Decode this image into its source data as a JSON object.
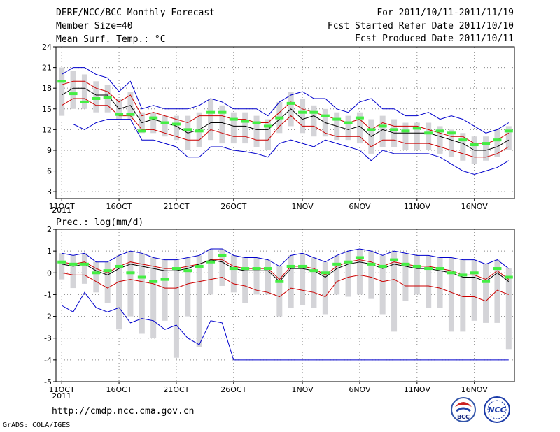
{
  "header": {
    "title": "DERF/NCC/BCC Monthly Forecast",
    "member_size": "Member Size=40",
    "period": "For 2011/10/11-2011/11/19",
    "fcst_started": "Fcst Started Refer Date 2011/10/10",
    "fcst_produced": "Fcst Produced Date 2011/10/11"
  },
  "footer": {
    "url": "http://cmdp.ncc.cma.gov.cn",
    "grads_credit": "GrADS: COLA/IGES",
    "logo_bcc": "BCC",
    "logo_ncc": "NCC"
  },
  "colors": {
    "envelope": "#0000cc",
    "spread": "#cc0000",
    "mean": "#000000",
    "member_bar": "#d4d4d8",
    "observed": "#44ee44"
  },
  "chart_data": [
    {
      "type": "line",
      "title": "Mean Surf. Temp.: °C",
      "x": [
        11,
        12,
        13,
        14,
        15,
        16,
        17,
        18,
        19,
        20,
        21,
        22,
        23,
        24,
        25,
        26,
        27,
        28,
        29,
        30,
        31,
        32,
        33,
        34,
        35,
        36,
        37,
        38,
        39,
        40,
        41,
        42,
        43,
        44,
        45,
        46,
        47,
        48,
        49,
        50
      ],
      "x_ticks": [
        {
          "x": 11,
          "label": "11OCT"
        },
        {
          "x": 16,
          "label": "16OCT"
        },
        {
          "x": 21,
          "label": "21OCT"
        },
        {
          "x": 26,
          "label": "26OCT"
        },
        {
          "x": 32,
          "label": "1NOV"
        },
        {
          "x": 37,
          "label": "6NOV"
        },
        {
          "x": 42,
          "label": "11NOV"
        },
        {
          "x": 47,
          "label": "16NOV"
        }
      ],
      "x_year": "2011",
      "xlim": [
        10.5,
        50.5
      ],
      "ylim": [
        2,
        24
      ],
      "y_ticks": [
        3,
        6,
        9,
        12,
        15,
        18,
        21,
        24
      ],
      "series": [
        {
          "name": "max",
          "role": "envelope",
          "values": [
            20.0,
            21.0,
            21.0,
            20.0,
            19.5,
            17.5,
            19.0,
            15.0,
            15.5,
            15.0,
            15.0,
            15.0,
            15.5,
            16.5,
            16.0,
            15.0,
            15.0,
            15.0,
            14.0,
            16.0,
            17.0,
            17.5,
            16.5,
            16.5,
            15.0,
            14.5,
            16.0,
            16.5,
            15.0,
            15.0,
            14.0,
            14.0,
            14.5,
            13.5,
            14.0,
            13.5,
            12.5,
            11.5,
            12.0,
            13.0
          ]
        },
        {
          "name": "upper",
          "role": "spread",
          "values": [
            18.5,
            19.0,
            19.0,
            18.0,
            17.5,
            16.0,
            17.0,
            14.0,
            14.5,
            14.0,
            13.5,
            13.0,
            14.0,
            14.0,
            14.0,
            13.5,
            13.5,
            13.0,
            13.0,
            14.5,
            16.0,
            15.0,
            14.5,
            14.0,
            13.5,
            13.0,
            13.5,
            12.0,
            13.0,
            12.5,
            12.5,
            12.5,
            12.0,
            11.5,
            11.0,
            11.0,
            10.0,
            10.0,
            10.5,
            11.5
          ]
        },
        {
          "name": "mean",
          "role": "mean",
          "values": [
            17.0,
            18.0,
            18.0,
            17.0,
            17.0,
            15.0,
            15.5,
            13.0,
            13.5,
            13.0,
            12.5,
            11.5,
            12.0,
            13.0,
            13.0,
            12.5,
            12.5,
            12.0,
            12.0,
            13.5,
            15.0,
            13.5,
            14.0,
            13.0,
            12.5,
            12.0,
            12.5,
            11.0,
            12.0,
            11.5,
            11.5,
            11.5,
            11.5,
            11.0,
            10.5,
            10.0,
            9.0,
            9.0,
            9.5,
            10.5
          ]
        },
        {
          "name": "lower",
          "role": "spread",
          "values": [
            15.5,
            16.5,
            16.5,
            15.5,
            15.5,
            14.0,
            14.0,
            12.0,
            12.0,
            11.5,
            11.0,
            10.5,
            10.5,
            12.0,
            11.5,
            11.0,
            11.0,
            10.5,
            10.5,
            12.5,
            14.0,
            12.5,
            12.5,
            11.5,
            11.0,
            11.0,
            11.0,
            9.5,
            10.5,
            10.5,
            10.0,
            10.0,
            10.0,
            9.5,
            9.0,
            8.5,
            8.0,
            8.0,
            8.5,
            9.5
          ]
        },
        {
          "name": "min",
          "role": "envelope",
          "values": [
            12.8,
            12.8,
            12.0,
            13.0,
            13.5,
            13.5,
            13.5,
            10.5,
            10.5,
            10.0,
            9.5,
            8.0,
            8.0,
            9.5,
            9.5,
            9.0,
            8.8,
            8.5,
            8.0,
            10.0,
            10.5,
            10.0,
            9.5,
            10.5,
            10.0,
            9.5,
            9.0,
            7.5,
            9.0,
            8.5,
            8.5,
            8.5,
            8.5,
            8.0,
            7.0,
            6.0,
            5.5,
            6.0,
            6.5,
            7.5
          ]
        }
      ],
      "member_range": {
        "low": [
          14.0,
          15.0,
          15.0,
          14.5,
          14.5,
          13.5,
          13.5,
          11.5,
          11.5,
          11.0,
          10.5,
          9.0,
          9.5,
          10.5,
          10.0,
          10.0,
          10.0,
          9.5,
          9.0,
          11.5,
          12.5,
          11.5,
          11.0,
          11.0,
          10.5,
          10.5,
          10.0,
          8.5,
          9.5,
          9.5,
          9.0,
          9.0,
          9.0,
          8.5,
          8.0,
          7.5,
          7.0,
          7.5,
          8.0,
          9.0
        ],
        "high": [
          21.0,
          20.5,
          20.0,
          19.0,
          18.5,
          16.5,
          17.5,
          14.5,
          14.5,
          14.0,
          14.0,
          14.0,
          14.5,
          16.5,
          15.5,
          14.5,
          14.5,
          14.0,
          13.5,
          16.0,
          17.5,
          16.5,
          15.5,
          15.0,
          14.5,
          14.0,
          14.5,
          13.5,
          14.0,
          13.5,
          13.0,
          13.0,
          13.0,
          12.5,
          12.0,
          11.5,
          11.0,
          11.0,
          12.0,
          12.5
        ]
      },
      "observed": [
        19.0,
        17.2,
        16.0,
        16.5,
        16.7,
        14.2,
        14.2,
        11.8,
        13.7,
        13.0,
        12.8,
        12.0,
        11.8,
        14.5,
        14.5,
        13.5,
        13.2,
        13.0,
        12.5,
        13.7,
        15.8,
        14.5,
        14.5,
        14.0,
        13.5,
        13.0,
        13.7,
        12.0,
        12.5,
        12.0,
        11.8,
        12.2,
        11.5,
        11.8,
        11.5,
        10.5,
        9.8,
        10.0,
        10.5,
        11.8
      ]
    },
    {
      "type": "line",
      "title": "Prec.: log(mm/d)",
      "x": [
        11,
        12,
        13,
        14,
        15,
        16,
        17,
        18,
        19,
        20,
        21,
        22,
        23,
        24,
        25,
        26,
        27,
        28,
        29,
        30,
        31,
        32,
        33,
        34,
        35,
        36,
        37,
        38,
        39,
        40,
        41,
        42,
        43,
        44,
        45,
        46,
        47,
        48,
        49,
        50
      ],
      "x_ticks": [
        {
          "x": 11,
          "label": "11OCT"
        },
        {
          "x": 16,
          "label": "16OCT"
        },
        {
          "x": 21,
          "label": "21OCT"
        },
        {
          "x": 26,
          "label": "26OCT"
        },
        {
          "x": 32,
          "label": "1NOV"
        },
        {
          "x": 37,
          "label": "6NOV"
        },
        {
          "x": 42,
          "label": "11NOV"
        },
        {
          "x": 47,
          "label": "16NOV"
        }
      ],
      "x_year": "2011",
      "xlim": [
        10.5,
        50.5
      ],
      "ylim": [
        -5,
        2
      ],
      "y_ticks": [
        -5,
        -4,
        -3,
        -2,
        -1,
        0,
        1,
        2
      ],
      "series": [
        {
          "name": "max",
          "role": "envelope",
          "values": [
            0.9,
            0.8,
            0.9,
            0.5,
            0.5,
            0.8,
            1.0,
            0.9,
            0.7,
            0.6,
            0.6,
            0.7,
            0.8,
            1.1,
            1.1,
            0.8,
            0.7,
            0.7,
            0.6,
            0.3,
            0.8,
            0.9,
            0.7,
            0.5,
            0.8,
            1.0,
            1.1,
            1.0,
            0.8,
            1.0,
            0.9,
            0.8,
            0.8,
            0.7,
            0.7,
            0.6,
            0.6,
            0.4,
            0.6,
            0.2
          ]
        },
        {
          "name": "upper",
          "role": "spread",
          "values": [
            0.5,
            0.4,
            0.5,
            0.2,
            0.0,
            0.3,
            0.5,
            0.4,
            0.3,
            0.2,
            0.2,
            0.3,
            0.4,
            0.6,
            0.6,
            0.3,
            0.2,
            0.2,
            0.2,
            -0.3,
            0.3,
            0.3,
            0.2,
            -0.1,
            0.3,
            0.5,
            0.6,
            0.5,
            0.3,
            0.5,
            0.4,
            0.3,
            0.3,
            0.2,
            0.1,
            -0.1,
            -0.1,
            -0.3,
            0.1,
            -0.3
          ]
        },
        {
          "name": "mean",
          "role": "mean",
          "values": [
            0.4,
            0.3,
            0.4,
            0.1,
            -0.1,
            0.2,
            0.4,
            0.3,
            0.2,
            0.1,
            0.1,
            0.2,
            0.4,
            0.6,
            0.5,
            0.2,
            0.1,
            0.1,
            0.1,
            -0.4,
            0.2,
            0.2,
            0.1,
            -0.2,
            0.2,
            0.4,
            0.5,
            0.4,
            0.2,
            0.4,
            0.3,
            0.2,
            0.2,
            0.1,
            0.0,
            -0.2,
            -0.2,
            -0.4,
            0.0,
            -0.4
          ]
        },
        {
          "name": "lower",
          "role": "spread",
          "values": [
            0.0,
            -0.1,
            -0.1,
            -0.4,
            -0.7,
            -0.4,
            -0.3,
            -0.4,
            -0.5,
            -0.7,
            -0.7,
            -0.5,
            -0.4,
            -0.3,
            -0.2,
            -0.5,
            -0.6,
            -0.8,
            -0.9,
            -1.1,
            -0.7,
            -0.8,
            -0.9,
            -1.1,
            -0.4,
            -0.2,
            -0.1,
            -0.2,
            -0.4,
            -0.3,
            -0.6,
            -0.6,
            -0.6,
            -0.7,
            -0.9,
            -1.1,
            -1.1,
            -1.3,
            -0.8,
            -1.0
          ]
        },
        {
          "name": "min",
          "role": "envelope",
          "values": [
            -1.5,
            -1.8,
            -0.9,
            -1.6,
            -1.8,
            -1.6,
            -2.3,
            -2.1,
            -2.2,
            -2.6,
            -2.4,
            -3.0,
            -3.3,
            -2.2,
            -2.3,
            -4.0,
            -4.0,
            -4.0,
            -4.0,
            -4.0,
            -4.0,
            -4.0,
            -4.0,
            -4.0,
            -4.0,
            -4.0,
            -4.0,
            -4.0,
            -4.0,
            -4.0,
            -4.0,
            -4.0,
            -4.0,
            -4.0,
            -4.0,
            -4.0,
            -4.0,
            -4.0,
            -4.0,
            -4.0
          ]
        }
      ],
      "member_range": {
        "low": [
          -0.3,
          -0.7,
          -0.5,
          -0.9,
          -1.4,
          -2.6,
          -2.0,
          -2.8,
          -3.0,
          -2.2,
          -3.9,
          -2.0,
          -3.4,
          -1.0,
          -0.6,
          -0.9,
          -1.4,
          -1.0,
          -1.0,
          -2.0,
          -1.6,
          -1.5,
          -1.6,
          -1.9,
          -1.0,
          -1.1,
          -1.0,
          -1.2,
          -1.9,
          -2.7,
          -1.3,
          -1.0,
          -1.6,
          -1.6,
          -2.7,
          -2.7,
          -2.2,
          -2.3,
          -2.3,
          -3.5
        ],
        "high": [
          0.9,
          0.8,
          0.9,
          0.5,
          0.5,
          0.8,
          1.0,
          0.9,
          0.7,
          0.6,
          0.6,
          0.7,
          0.8,
          1.1,
          1.1,
          0.8,
          0.7,
          0.7,
          0.6,
          0.3,
          0.8,
          0.9,
          0.7,
          0.5,
          0.8,
          1.0,
          1.1,
          1.0,
          0.8,
          1.0,
          0.9,
          0.8,
          0.8,
          0.7,
          0.7,
          0.6,
          0.6,
          0.4,
          0.6,
          0.2
        ]
      },
      "observed": [
        0.5,
        0.4,
        0.4,
        0.0,
        0.1,
        0.3,
        0.0,
        -0.2,
        -0.4,
        -0.3,
        0.2,
        0.1,
        0.3,
        0.5,
        0.8,
        0.2,
        0.2,
        0.2,
        0.2,
        -0.4,
        0.3,
        0.3,
        0.1,
        0.0,
        0.4,
        0.5,
        0.7,
        0.4,
        0.3,
        0.6,
        0.4,
        0.3,
        0.2,
        0.2,
        0.0,
        -0.1,
        0.0,
        -0.4,
        0.2,
        -0.2
      ]
    }
  ]
}
